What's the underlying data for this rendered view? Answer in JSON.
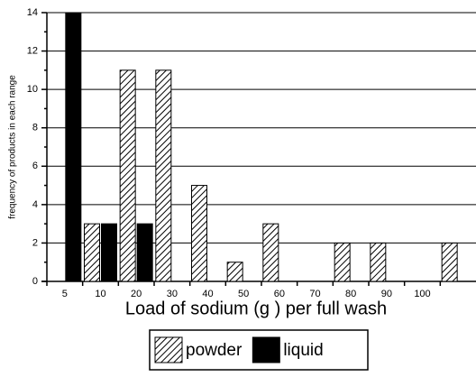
{
  "chart_data": {
    "type": "bar",
    "x_label": "Load of sodium (g ) per full wash",
    "y_label": "frequency of products in each range",
    "categories": [
      "5",
      "10",
      "20",
      "30",
      "40",
      "50",
      "60",
      "70",
      "80",
      "90",
      "100",
      null
    ],
    "series": [
      {
        "name": "powder",
        "color": "#000000",
        "hatch": true,
        "values": [
          0,
          3,
          11,
          11,
          5,
          1,
          3,
          0,
          2,
          2,
          0,
          2
        ]
      },
      {
        "name": "liquid",
        "color": "#000000",
        "hatch": false,
        "values": [
          14,
          3,
          3,
          0,
          0,
          0,
          0,
          0,
          0,
          0,
          0,
          0
        ]
      }
    ],
    "ylim": [
      0,
      14
    ],
    "yticks": [
      0,
      2,
      4,
      6,
      8,
      10,
      12,
      14
    ],
    "grid": true,
    "legend": "bottom"
  }
}
